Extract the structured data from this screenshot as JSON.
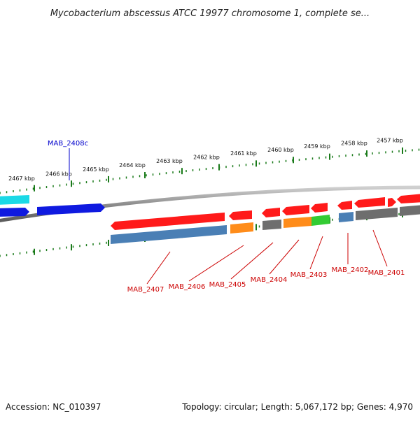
{
  "title": "Mycobacterium abscessus ATCC 19977 chromosome 1, complete se...",
  "footer": {
    "accession": "Accession: NC_010397",
    "summary": "Topology: circular; Length: 5,067,172 bp; Genes: 4,970"
  },
  "colors": {
    "background": "#ffffff",
    "backbone": "#8c8c8c",
    "tick": "#1a7a1a",
    "gene_label_red": "#cc0000",
    "gene_label_blue": "#0000cc",
    "red": "#ff1a1a",
    "blue": "#0f1ae0",
    "cyan": "#1ad9e6",
    "orange": "#ff8c1a",
    "green": "#33cc33",
    "steelblue": "#4a7fb5",
    "gray": "#6e6e6e"
  },
  "kbp_labels": [
    "2467 kbp",
    "2466 kbp",
    "2465 kbp",
    "2464 kbp",
    "2463 kbp",
    "2462 kbp",
    "2461 kbp",
    "2460 kbp",
    "2459 kbp",
    "2458 kbp",
    "2457 kbp"
  ],
  "gene_labels": [
    {
      "text": "MAB_2408c",
      "color": "blue"
    },
    {
      "text": "MAB_2407",
      "color": "red"
    },
    {
      "text": "MAB_2406",
      "color": "red"
    },
    {
      "text": "MAB_2405",
      "color": "red"
    },
    {
      "text": "MAB_2404",
      "color": "red"
    },
    {
      "text": "MAB_2403",
      "color": "red"
    },
    {
      "text": "MAB_2402",
      "color": "red"
    },
    {
      "text": "MAB_2401",
      "color": "red"
    }
  ]
}
